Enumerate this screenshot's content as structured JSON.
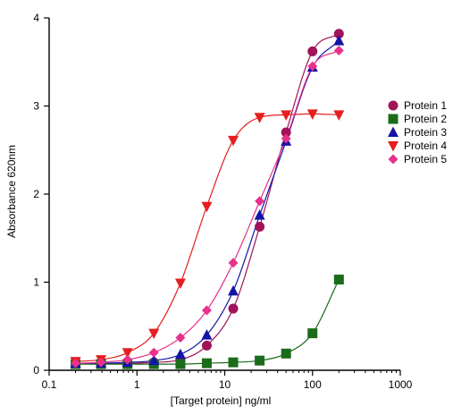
{
  "chart_data": {
    "type": "scatter",
    "title": "",
    "xlabel": "[Target protein] ng/ml",
    "ylabel": "Absorbance 620nm",
    "xscale": "log",
    "xlim": [
      0.1,
      1000
    ],
    "ylim": [
      0,
      4
    ],
    "x_ticks": [
      {
        "value": 0.1,
        "label": "0.1"
      },
      {
        "value": 1,
        "label": "1"
      },
      {
        "value": 10,
        "label": "10"
      },
      {
        "value": 100,
        "label": "100"
      },
      {
        "value": 1000,
        "label": "1000"
      }
    ],
    "y_ticks": [
      {
        "value": 0,
        "label": "0"
      },
      {
        "value": 1,
        "label": "1"
      },
      {
        "value": 2,
        "label": "2"
      },
      {
        "value": 3,
        "label": "3"
      },
      {
        "value": 4,
        "label": "4"
      }
    ],
    "grid": false,
    "legend_position": "right",
    "fit_curves": true,
    "series": [
      {
        "name": "Protein 1",
        "marker": "circle",
        "color": "#a0145a",
        "points": [
          [
            0.2,
            0.08
          ],
          [
            0.39,
            0.08
          ],
          [
            0.78,
            0.08
          ],
          [
            1.56,
            0.09
          ],
          [
            3.13,
            0.12
          ],
          [
            6.25,
            0.28
          ],
          [
            12.5,
            0.7
          ],
          [
            25,
            1.63
          ],
          [
            50,
            2.7
          ],
          [
            100,
            3.62
          ],
          [
            200,
            3.82
          ]
        ]
      },
      {
        "name": "Protein 2",
        "marker": "square",
        "color": "#1a6b1a",
        "points": [
          [
            0.2,
            0.07
          ],
          [
            0.39,
            0.07
          ],
          [
            0.78,
            0.07
          ],
          [
            1.56,
            0.07
          ],
          [
            3.13,
            0.07
          ],
          [
            6.25,
            0.08
          ],
          [
            12.5,
            0.09
          ],
          [
            25,
            0.11
          ],
          [
            50,
            0.19
          ],
          [
            100,
            0.42
          ],
          [
            200,
            1.03
          ]
        ]
      },
      {
        "name": "Protein 3",
        "marker": "triangle-up",
        "color": "#1414a8",
        "points": [
          [
            0.2,
            0.08
          ],
          [
            0.39,
            0.08
          ],
          [
            0.78,
            0.09
          ],
          [
            1.56,
            0.11
          ],
          [
            3.13,
            0.18
          ],
          [
            6.25,
            0.4
          ],
          [
            12.5,
            0.9
          ],
          [
            25,
            1.76
          ],
          [
            50,
            2.6
          ],
          [
            100,
            3.44
          ],
          [
            200,
            3.74
          ]
        ]
      },
      {
        "name": "Protein 4",
        "marker": "triangle-down",
        "color": "#e61e1e",
        "points": [
          [
            0.2,
            0.1
          ],
          [
            0.39,
            0.12
          ],
          [
            0.78,
            0.2
          ],
          [
            1.56,
            0.42
          ],
          [
            3.13,
            0.99
          ],
          [
            6.25,
            1.86
          ],
          [
            12.5,
            2.61
          ],
          [
            25,
            2.87
          ],
          [
            50,
            2.9
          ],
          [
            100,
            2.91
          ],
          [
            200,
            2.9
          ]
        ]
      },
      {
        "name": "Protein 5",
        "marker": "diamond",
        "color": "#e8308c",
        "points": [
          [
            0.2,
            0.08
          ],
          [
            0.39,
            0.09
          ],
          [
            0.78,
            0.12
          ],
          [
            1.56,
            0.2
          ],
          [
            3.13,
            0.37
          ],
          [
            6.25,
            0.68
          ],
          [
            12.5,
            1.22
          ],
          [
            25,
            1.92
          ],
          [
            50,
            2.63
          ],
          [
            100,
            3.45
          ],
          [
            200,
            3.63
          ]
        ]
      }
    ]
  }
}
